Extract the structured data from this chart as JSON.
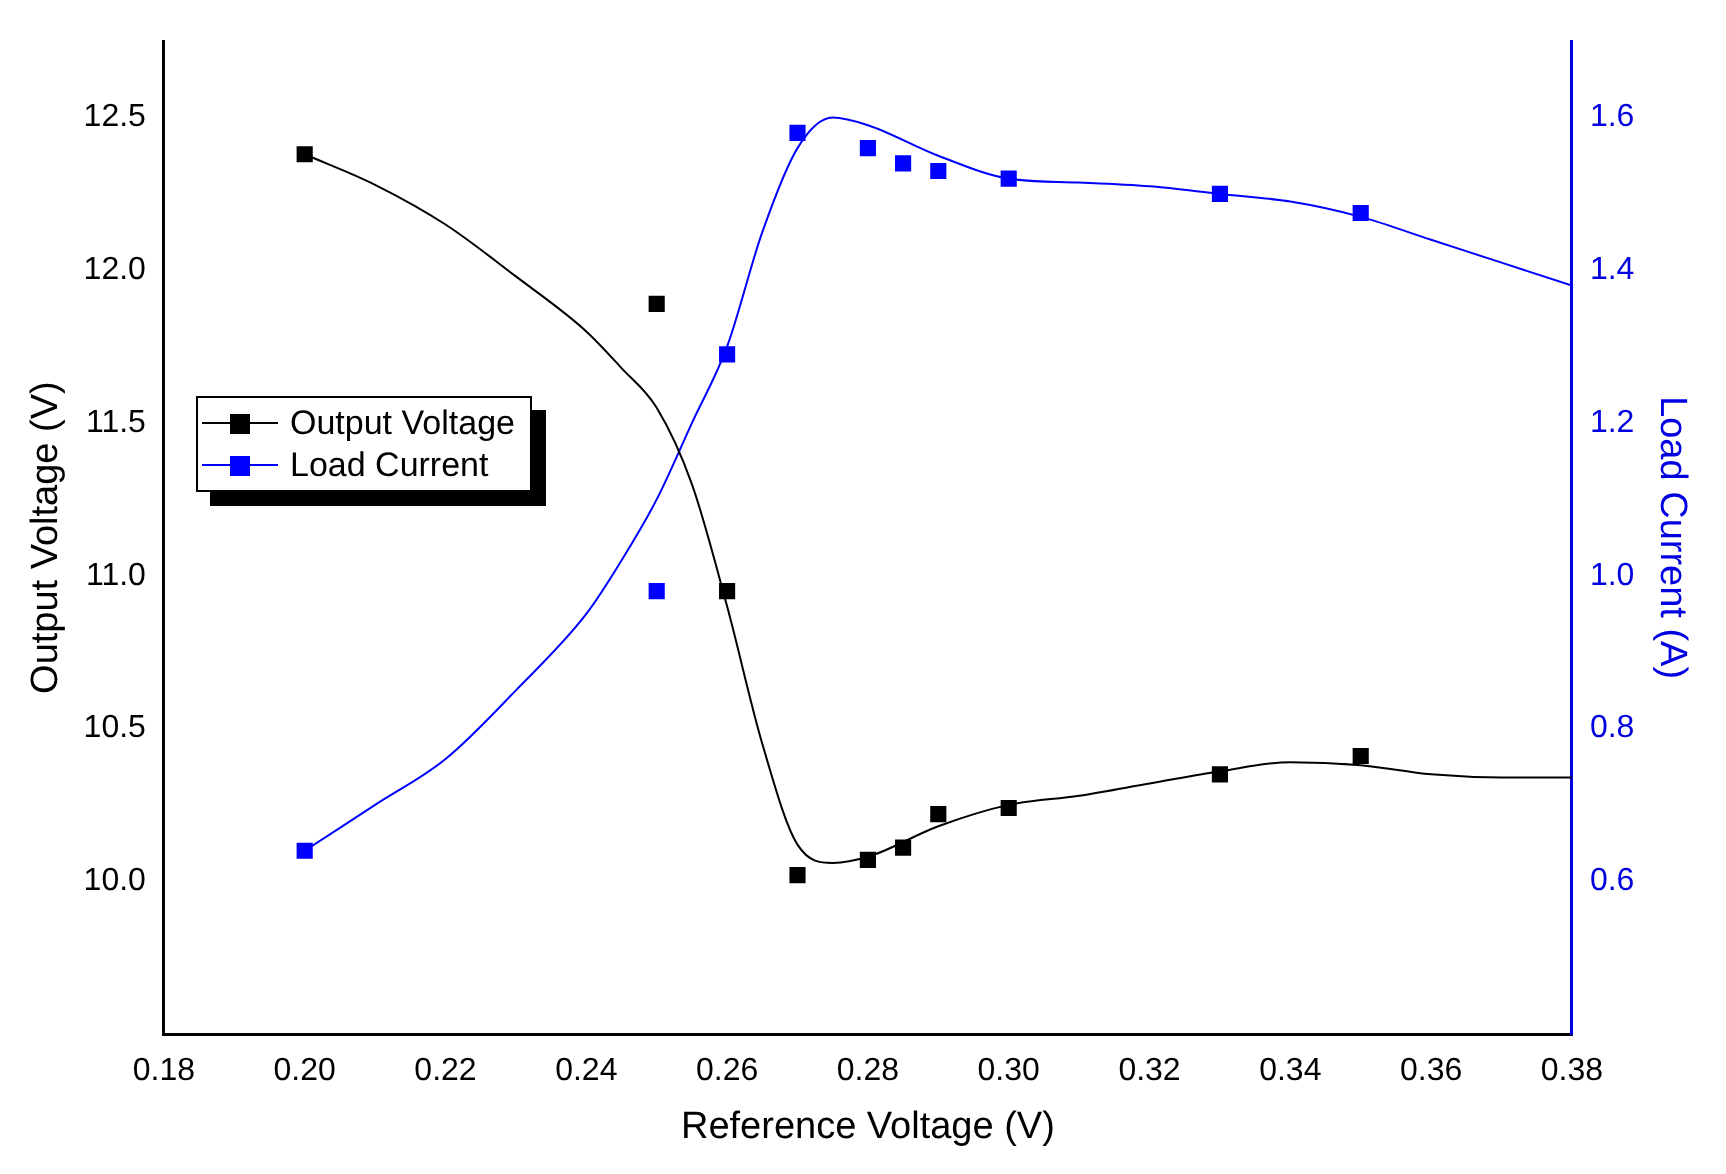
{
  "chart_data": {
    "type": "scatter",
    "xlabel": "Reference Voltage (V)",
    "ylabel": "Output Voltage (V)",
    "y2label": "Load Current (A)",
    "xlim": [
      0.18,
      0.38
    ],
    "xticks": [
      {
        "value": 0.18,
        "label": "0.18"
      },
      {
        "value": 0.2,
        "label": "0.20"
      },
      {
        "value": 0.22,
        "label": "0.22"
      },
      {
        "value": 0.24,
        "label": "0.24"
      },
      {
        "value": 0.26,
        "label": "0.26"
      },
      {
        "value": 0.28,
        "label": "0.28"
      },
      {
        "value": 0.3,
        "label": "0.30"
      },
      {
        "value": 0.32,
        "label": "0.32"
      },
      {
        "value": 0.34,
        "label": "0.34"
      },
      {
        "value": 0.36,
        "label": "0.36"
      },
      {
        "value": 0.38,
        "label": "0.38"
      }
    ],
    "ylim": [
      9.5,
      12.75
    ],
    "yticks": [
      {
        "value": 10,
        "label": "10.0"
      },
      10.5,
      {
        "value": 11,
        "label": "11.0"
      },
      11.5,
      {
        "value": 12,
        "label": "12.0"
      },
      12.5
    ],
    "y2lim": [
      0.4,
      1.7
    ],
    "y2ticks": [
      0.6,
      0.8,
      {
        "value": 1,
        "label": "1.0"
      },
      1.2,
      1.4,
      1.6
    ],
    "grid": false,
    "legend": "left",
    "series": [
      {
        "name": "Output Voltage",
        "marker": "square",
        "color": "#000000",
        "x": [
          0.2,
          0.25,
          0.26,
          0.27,
          0.28,
          0.285,
          0.29,
          0.3,
          0.33,
          0.35
        ],
        "values": [
          12.38,
          11.89,
          10.95,
          10.02,
          10.07,
          10.11,
          10.22,
          10.24,
          10.35,
          10.41
        ]
      },
      {
        "name": "Load Current",
        "marker": "square",
        "axis": "y2",
        "color": "#0000ff",
        "x": [
          0.2,
          0.25,
          0.26,
          0.27,
          0.28,
          0.285,
          0.29,
          0.3,
          0.33,
          0.35
        ],
        "values": [
          0.64,
          0.98,
          1.29,
          1.58,
          1.56,
          1.54,
          1.53,
          1.52,
          1.5,
          1.475
        ]
      },
      {
        "type": "line",
        "marker": "none",
        "color": "#000000",
        "x": [
          0.2,
          0.21,
          0.22,
          0.23,
          0.24,
          0.245,
          0.25,
          0.255,
          0.26,
          0.265,
          0.27,
          0.275,
          0.28,
          0.29,
          0.3,
          0.31,
          0.32,
          0.33,
          0.34,
          0.35,
          0.36,
          0.37,
          0.38
        ],
        "values": [
          12.38,
          12.28,
          12.15,
          11.98,
          11.8,
          11.68,
          11.55,
          11.3,
          10.9,
          10.45,
          10.12,
          10.06,
          10.08,
          10.18,
          10.25,
          10.28,
          10.32,
          10.36,
          10.39,
          10.38,
          10.35,
          10.34,
          10.34
        ]
      },
      {
        "type": "line",
        "marker": "none",
        "axis": "y2",
        "color": "#0000ff",
        "x": [
          0.2,
          0.21,
          0.22,
          0.23,
          0.24,
          0.245,
          0.25,
          0.255,
          0.26,
          0.265,
          0.27,
          0.275,
          0.28,
          0.29,
          0.3,
          0.31,
          0.32,
          0.33,
          0.34,
          0.35,
          0.36,
          0.37,
          0.38
        ],
        "values": [
          0.64,
          0.7,
          0.76,
          0.85,
          0.95,
          1.02,
          1.1,
          1.2,
          1.3,
          1.45,
          1.56,
          1.6,
          1.59,
          1.55,
          1.52,
          1.515,
          1.51,
          1.5,
          1.49,
          1.47,
          1.44,
          1.41,
          1.38
        ]
      }
    ]
  }
}
